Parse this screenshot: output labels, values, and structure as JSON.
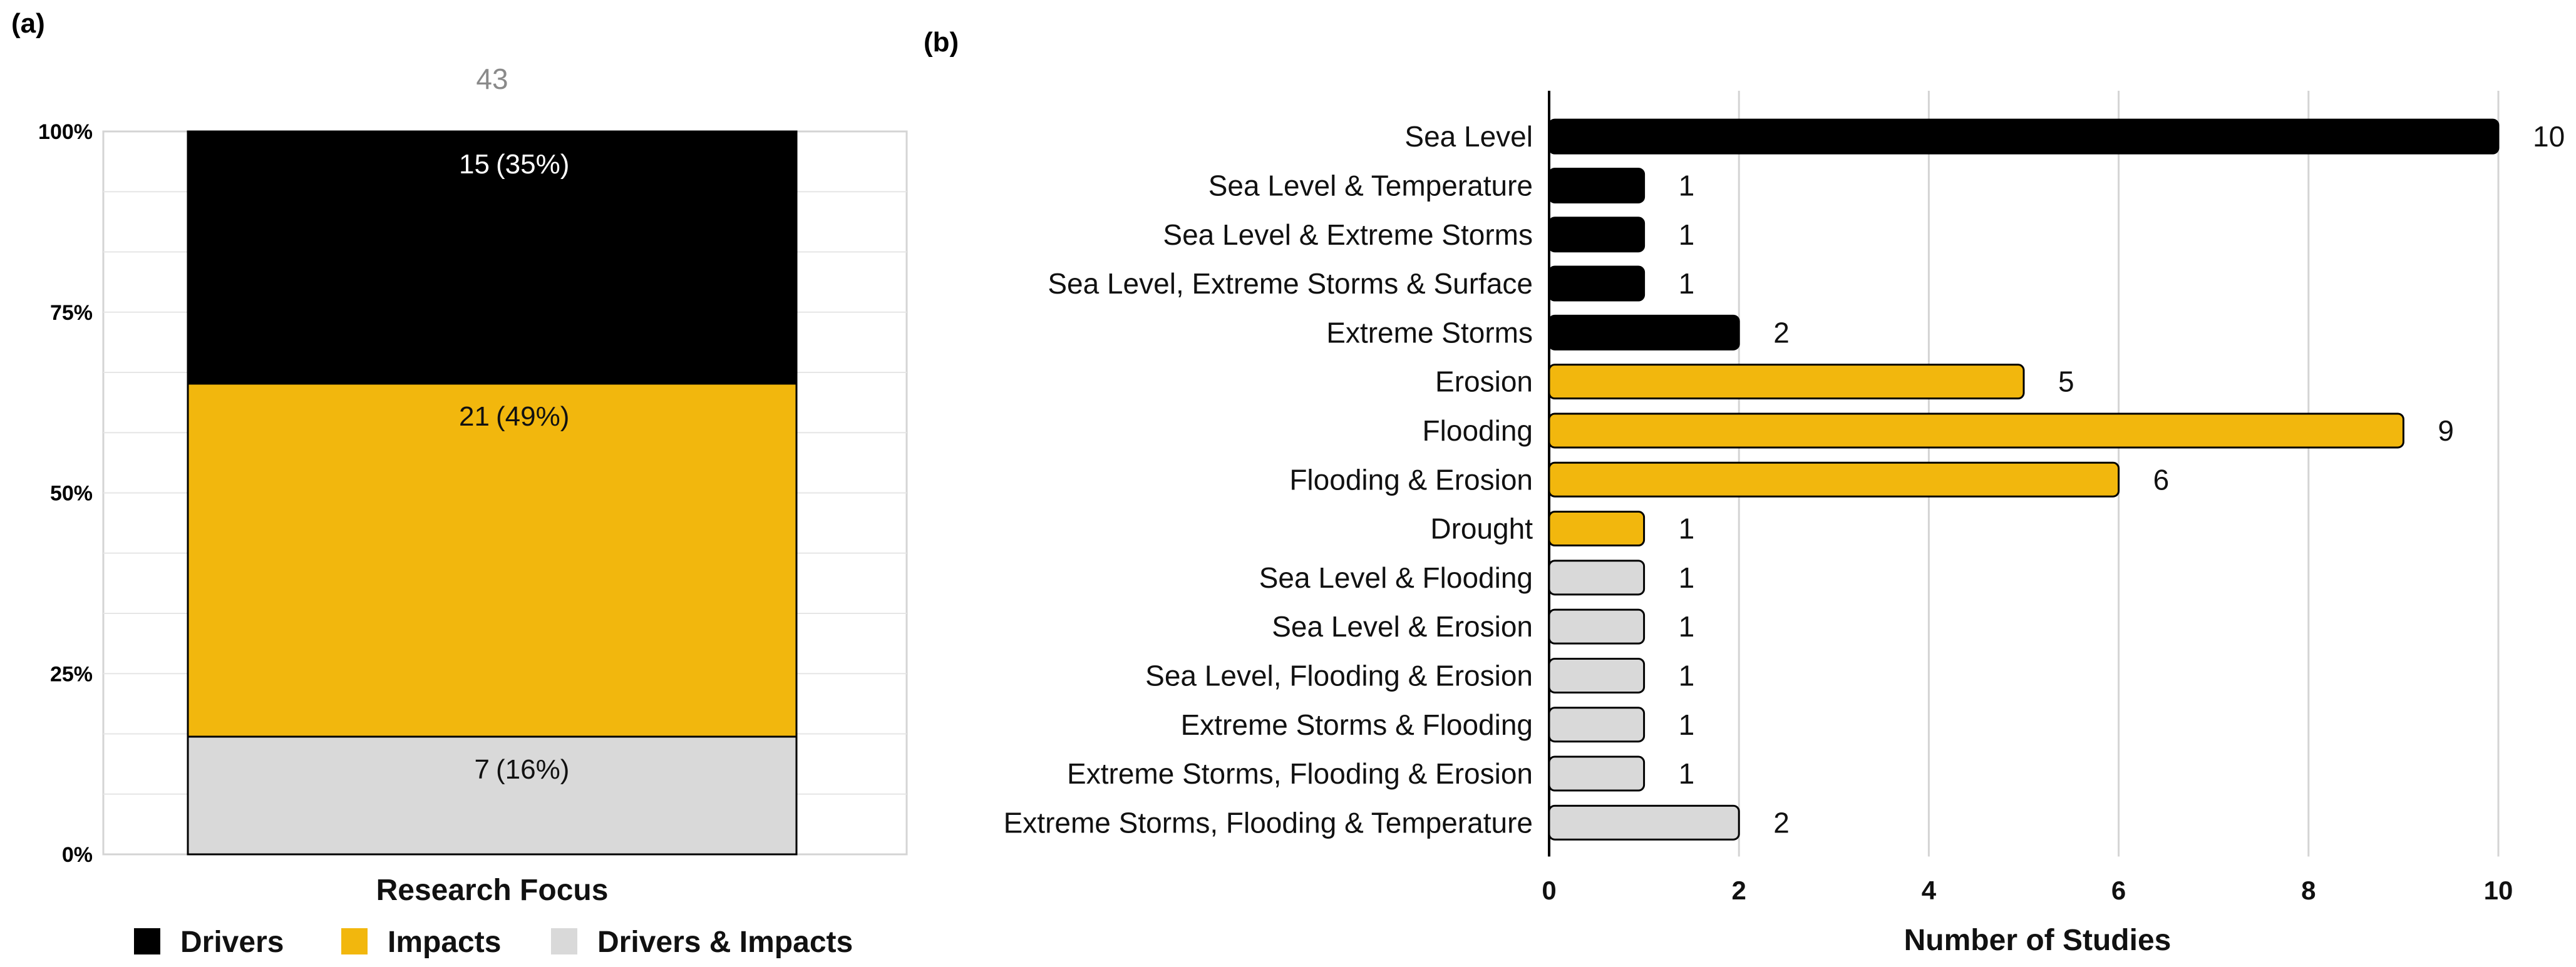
{
  "colors": {
    "drivers": "#000000",
    "impacts": "#F2B70D",
    "both": "#D9D9D9",
    "grid": "#D4D4D4"
  },
  "chart_data": [
    {
      "type": "bar",
      "panel_label": "(a)",
      "title": "",
      "xlabel": "Research Focus",
      "stacked": true,
      "total_label": "43",
      "y_ticks": [
        "0%",
        "25%",
        "50%",
        "75%",
        "100%"
      ],
      "ylim": [
        0,
        100
      ],
      "categories": [
        "Research Focus"
      ],
      "series": [
        {
          "name": "Drivers & Impacts",
          "key": "both",
          "values": [
            7
          ],
          "label": "7",
          "pct_label": "(16%)"
        },
        {
          "name": "Impacts",
          "key": "impacts",
          "values": [
            21
          ],
          "label": "21",
          "pct_label": "(49%)"
        },
        {
          "name": "Drivers",
          "key": "drivers",
          "values": [
            15
          ],
          "label": "15",
          "pct_label": "(35%)"
        }
      ],
      "legend": [
        {
          "name": "Drivers",
          "key": "drivers"
        },
        {
          "name": "Impacts",
          "key": "impacts"
        },
        {
          "name": "Drivers & Impacts",
          "key": "both"
        }
      ]
    },
    {
      "type": "bar",
      "orientation": "horizontal",
      "panel_label": "(b)",
      "title": "",
      "xlabel": "Number of Studies",
      "ylabel": "",
      "xlim": [
        0,
        10
      ],
      "x_ticks": [
        "0",
        "2",
        "4",
        "6",
        "8",
        "10"
      ],
      "categories": [
        "Sea Level",
        "Sea Level & Temperature",
        "Sea Level & Extreme Storms",
        "Sea Level, Extreme Storms & Surface",
        "Extreme Storms",
        "Erosion",
        "Flooding",
        "Flooding & Erosion",
        "Drought",
        "Sea Level & Flooding",
        "Sea Level & Erosion",
        "Sea Level, Flooding & Erosion",
        "Extreme Storms & Flooding",
        "Extreme Storms, Flooding & Erosion",
        "Extreme Storms, Flooding & Temperature"
      ],
      "values": [
        10,
        1,
        1,
        1,
        2,
        5,
        9,
        6,
        1,
        1,
        1,
        1,
        1,
        1,
        2
      ],
      "value_labels": [
        "10",
        "1",
        "1",
        "1",
        "2",
        "5",
        "9",
        "6",
        "1",
        "1",
        "1",
        "1",
        "1",
        "1",
        "2"
      ],
      "groups": [
        "drivers",
        "drivers",
        "drivers",
        "drivers",
        "drivers",
        "impacts",
        "impacts",
        "impacts",
        "impacts",
        "both",
        "both",
        "both",
        "both",
        "both",
        "both"
      ],
      "grid": true
    }
  ]
}
